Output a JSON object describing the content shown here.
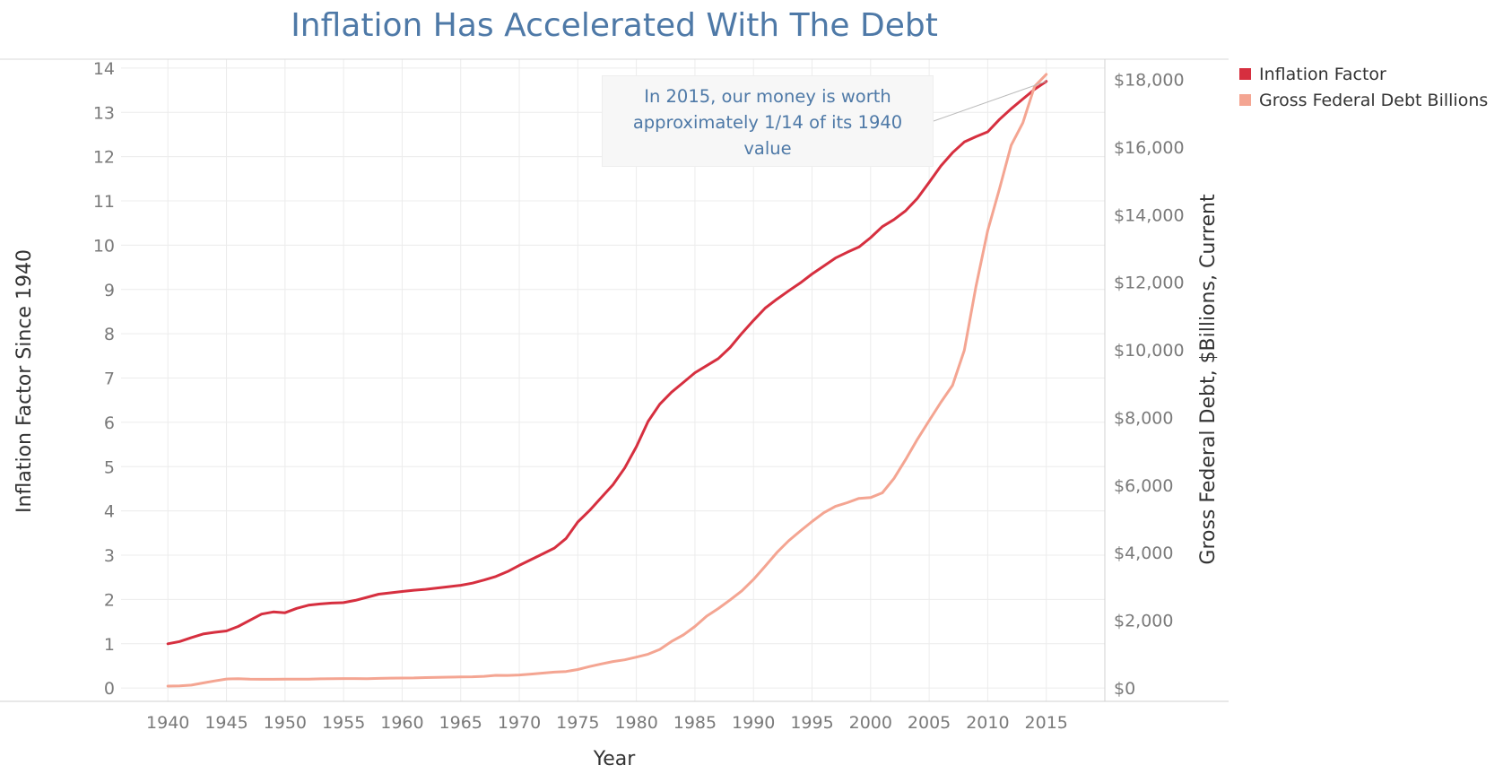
{
  "chart_data": {
    "type": "line",
    "title": "Inflation Has Accelerated With The Debt",
    "xlabel": "Year",
    "ylabel_left": "Inflation Factor Since 1940",
    "ylabel_right": "Gross Federal Debt, $Billions, Current",
    "xlim": [
      1936,
      2020
    ],
    "ylim_left": [
      -0.3,
      14.2
    ],
    "ylim_right": [
      -400,
      18600
    ],
    "x_ticks": [
      1940,
      1945,
      1950,
      1955,
      1960,
      1965,
      1970,
      1975,
      1980,
      1985,
      1990,
      1995,
      2000,
      2005,
      2010,
      2015
    ],
    "y_left_ticks": [
      0,
      1,
      2,
      3,
      4,
      5,
      6,
      7,
      8,
      9,
      10,
      11,
      12,
      13,
      14
    ],
    "y_right_ticks": [
      0,
      2000,
      4000,
      6000,
      8000,
      10000,
      12000,
      14000,
      16000,
      18000
    ],
    "y_right_tick_labels": [
      "$0",
      "$2,000",
      "$4,000",
      "$6,000",
      "$8,000",
      "$10,000",
      "$12,000",
      "$14,000",
      "$16,000",
      "$18,000"
    ],
    "legend_position": "top-right",
    "grid": true,
    "series": [
      {
        "name": "Inflation Factor",
        "axis": "left",
        "color": "#d62f3f",
        "x": [
          1940,
          1941,
          1942,
          1943,
          1944,
          1945,
          1946,
          1947,
          1948,
          1949,
          1950,
          1951,
          1952,
          1953,
          1954,
          1955,
          1956,
          1957,
          1958,
          1959,
          1960,
          1961,
          1962,
          1963,
          1964,
          1965,
          1966,
          1967,
          1968,
          1969,
          1970,
          1971,
          1972,
          1973,
          1974,
          1975,
          1976,
          1977,
          1978,
          1979,
          1980,
          1981,
          1982,
          1983,
          1984,
          1985,
          1986,
          1987,
          1988,
          1989,
          1990,
          1991,
          1992,
          1993,
          1994,
          1995,
          1996,
          1997,
          1998,
          1999,
          2000,
          2001,
          2002,
          2003,
          2004,
          2005,
          2006,
          2007,
          2008,
          2009,
          2010,
          2011,
          2012,
          2013,
          2014,
          2015
        ],
        "values": [
          1.0,
          1.05,
          1.14,
          1.22,
          1.26,
          1.29,
          1.39,
          1.53,
          1.67,
          1.72,
          1.7,
          1.8,
          1.87,
          1.9,
          1.92,
          1.93,
          1.98,
          2.05,
          2.12,
          2.15,
          2.18,
          2.21,
          2.23,
          2.26,
          2.29,
          2.32,
          2.37,
          2.44,
          2.52,
          2.63,
          2.77,
          2.9,
          3.03,
          3.16,
          3.38,
          3.75,
          4.01,
          4.3,
          4.59,
          4.97,
          5.45,
          6.02,
          6.41,
          6.68,
          6.9,
          7.12,
          7.28,
          7.44,
          7.69,
          8.01,
          8.3,
          8.58,
          8.78,
          8.97,
          9.15,
          9.35,
          9.53,
          9.71,
          9.84,
          9.96,
          10.17,
          10.42,
          10.58,
          10.78,
          11.06,
          11.42,
          11.79,
          12.09,
          12.33,
          12.45,
          12.56,
          12.84,
          13.08,
          13.3,
          13.52,
          13.7
        ]
      },
      {
        "name": "Gross Federal Debt Billions",
        "axis": "right",
        "color": "#f4a592",
        "x": [
          1940,
          1941,
          1942,
          1943,
          1944,
          1945,
          1946,
          1947,
          1948,
          1949,
          1950,
          1951,
          1952,
          1953,
          1954,
          1955,
          1956,
          1957,
          1958,
          1959,
          1960,
          1961,
          1962,
          1963,
          1964,
          1965,
          1966,
          1967,
          1968,
          1969,
          1970,
          1971,
          1972,
          1973,
          1974,
          1975,
          1976,
          1977,
          1978,
          1979,
          1980,
          1981,
          1982,
          1983,
          1984,
          1985,
          1986,
          1987,
          1988,
          1989,
          1990,
          1991,
          1992,
          1993,
          1994,
          1995,
          1996,
          1997,
          1998,
          1999,
          2000,
          2001,
          2002,
          2003,
          2004,
          2005,
          2006,
          2007,
          2008,
          2009,
          2010,
          2011,
          2012,
          2013,
          2014,
          2015
        ],
        "values": [
          51,
          58,
          79,
          143,
          204,
          260,
          271,
          257,
          252,
          253,
          257,
          255,
          259,
          266,
          271,
          274,
          273,
          272,
          280,
          287,
          291,
          293,
          303,
          310,
          316,
          322,
          328,
          340,
          369,
          366,
          381,
          408,
          436,
          466,
          484,
          542,
          629,
          706,
          777,
          829,
          909,
          995,
          1137,
          1372,
          1565,
          1817,
          2121,
          2346,
          2601,
          2868,
          3206,
          3598,
          4002,
          4351,
          4643,
          4921,
          5181,
          5369,
          5478,
          5605,
          5628,
          5769,
          6198,
          6760,
          7355,
          7905,
          8451,
          8951,
          9986,
          11876,
          13529,
          14764,
          16051,
          16719,
          17794,
          18151
        ]
      }
    ]
  },
  "annotation": {
    "lines": [
      "In 2015, our money is worth",
      "approximately 1/14 of its 1940",
      "value"
    ]
  }
}
